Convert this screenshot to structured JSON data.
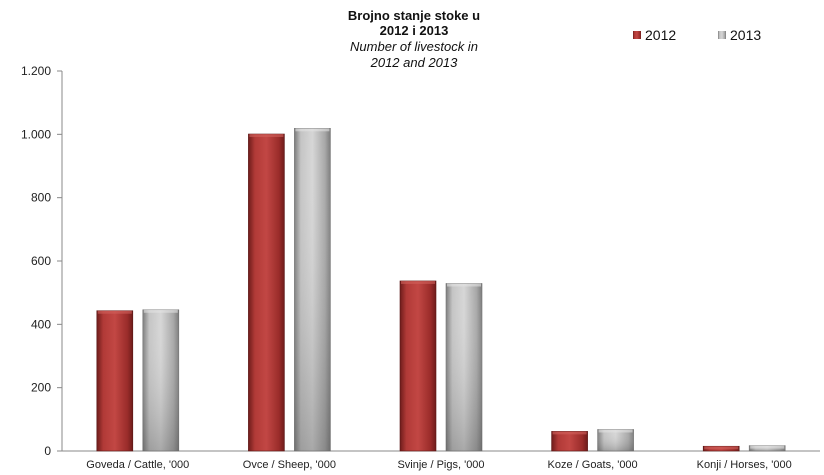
{
  "chart_data": {
    "type": "bar",
    "title_lines": [
      "Brojno stanje stoke  u",
      "2012 i 2013"
    ],
    "subtitle_lines": [
      "Number of livestock in",
      "2012 and 2013"
    ],
    "categories": [
      "Goveda / Cattle, '000",
      "Ovce / Sheep, '000",
      "Svinje / Pigs, '000",
      "Koze / Goats, '000",
      "Konji / Horses, '000"
    ],
    "series": [
      {
        "name": "2012",
        "color": "#a0302e",
        "values": [
          443,
          1001,
          537,
          62,
          15
        ]
      },
      {
        "name": "2013",
        "color": "#a6a6a6",
        "values": [
          446,
          1019,
          529,
          68,
          17
        ]
      }
    ],
    "ylim": [
      0,
      1200
    ],
    "yticks": [
      0,
      200,
      400,
      600,
      800,
      1000,
      1200
    ],
    "ytick_labels": [
      "0",
      "200",
      "400",
      "600",
      "800",
      "1.000",
      "1.200"
    ],
    "grid": false,
    "legend_position": "top-right"
  }
}
